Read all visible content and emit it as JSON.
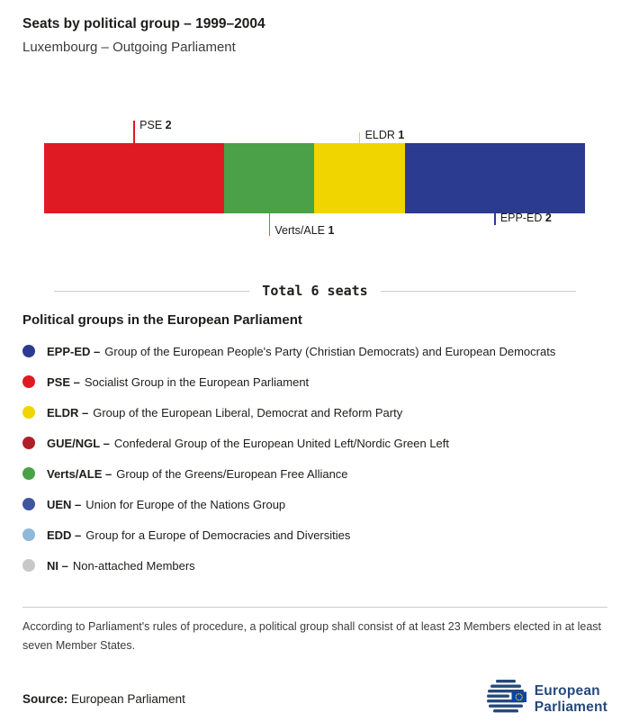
{
  "chart_data": {
    "type": "bar",
    "variant": "stacked-horizontal",
    "title": "Seats by political group – 1999–2004",
    "subtitle": "Luxembourg – Outgoing Parliament",
    "total_seats": 6,
    "total_label": "Total 6 seats",
    "categories": [
      "PSE",
      "Verts/ALE",
      "ELDR",
      "EPP-ED"
    ],
    "values": [
      2,
      1,
      1,
      2
    ],
    "segments": [
      {
        "group": "PSE",
        "seats": 2,
        "color": "#e01a22",
        "callout": "above",
        "callout_size": "long"
      },
      {
        "group": "Verts/ALE",
        "seats": 1,
        "color": "#4aa147",
        "callout": "below",
        "callout_size": "long"
      },
      {
        "group": "ELDR",
        "seats": 1,
        "color": "#f0d500",
        "callout": "above",
        "callout_size": "short"
      },
      {
        "group": "EPP-ED",
        "seats": 2,
        "color": "#2b3b8f",
        "callout": "below",
        "callout_size": "short"
      }
    ]
  },
  "total": {
    "label": "Total 6 seats"
  },
  "legend": {
    "heading": "Political groups in the European Parliament",
    "items": [
      {
        "name": "EPP-ED –",
        "desc": "Group of the European People's Party (Christian Democrats) and European Democrats",
        "color": "#2b3b8f"
      },
      {
        "name": "PSE –",
        "desc": "Socialist Group in the European Parliament",
        "color": "#e01a22"
      },
      {
        "name": "ELDR –",
        "desc": "Group of the European Liberal, Democrat and Reform Party",
        "color": "#f0d500"
      },
      {
        "name": "GUE/NGL –",
        "desc": "Confederal Group of the European United Left/Nordic Green Left",
        "color": "#b01e28"
      },
      {
        "name": "Verts/ALE –",
        "desc": "Group of the Greens/European Free Alliance",
        "color": "#4aa147"
      },
      {
        "name": "UEN –",
        "desc": "Union for Europe of the Nations Group",
        "color": "#41549e"
      },
      {
        "name": "EDD –",
        "desc": "Group for a Europe of Democracies and Diversities",
        "color": "#8fb9d8"
      },
      {
        "name": "NI –",
        "desc": "Non-attached Members",
        "color": "#c8c8c8"
      }
    ]
  },
  "footnote": "According to Parliament's rules of procedure, a political group shall consist of at least 23 Members elected in at least seven Member States.",
  "footer": {
    "source_label": "Source:",
    "source_value": "European Parliament",
    "logo_line1": "European",
    "logo_line2": "Parliament"
  }
}
